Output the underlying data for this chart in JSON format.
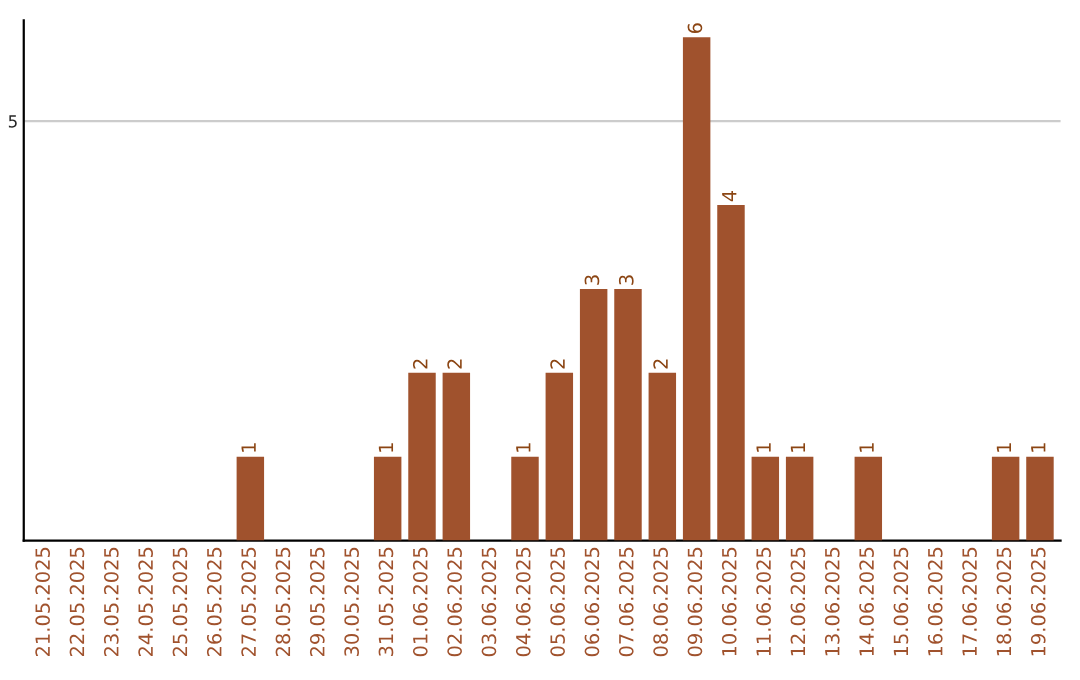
{
  "chart_data": {
    "type": "bar",
    "categories": [
      "21.05.2025",
      "22.05.2025",
      "23.05.2025",
      "24.05.2025",
      "25.05.2025",
      "26.05.2025",
      "27.05.2025",
      "28.05.2025",
      "29.05.2025",
      "30.05.2025",
      "31.05.2025",
      "01.06.2025",
      "02.06.2025",
      "03.06.2025",
      "04.06.2025",
      "05.06.2025",
      "06.06.2025",
      "07.06.2025",
      "08.06.2025",
      "09.06.2025",
      "10.06.2025",
      "11.06.2025",
      "12.06.2025",
      "13.06.2025",
      "14.06.2025",
      "15.06.2025",
      "16.06.2025",
      "17.06.2025",
      "18.06.2025",
      "19.06.2025"
    ],
    "values": [
      0,
      0,
      0,
      0,
      0,
      0,
      1,
      0,
      0,
      0,
      1,
      2,
      2,
      0,
      1,
      2,
      3,
      3,
      2,
      6,
      4,
      1,
      1,
      0,
      1,
      0,
      0,
      0,
      1,
      1
    ],
    "value_labels": [
      null,
      null,
      null,
      null,
      null,
      null,
      "1",
      null,
      null,
      null,
      "1",
      "2",
      "2",
      null,
      "1",
      "2",
      "3",
      "3",
      "2",
      "6",
      "4",
      "1",
      "1",
      null,
      "1",
      null,
      null,
      null,
      "1",
      "1"
    ],
    "color": "#a0522d",
    "ylim": [
      0,
      6.2
    ],
    "yticks": [
      5
    ],
    "grid": "y"
  }
}
